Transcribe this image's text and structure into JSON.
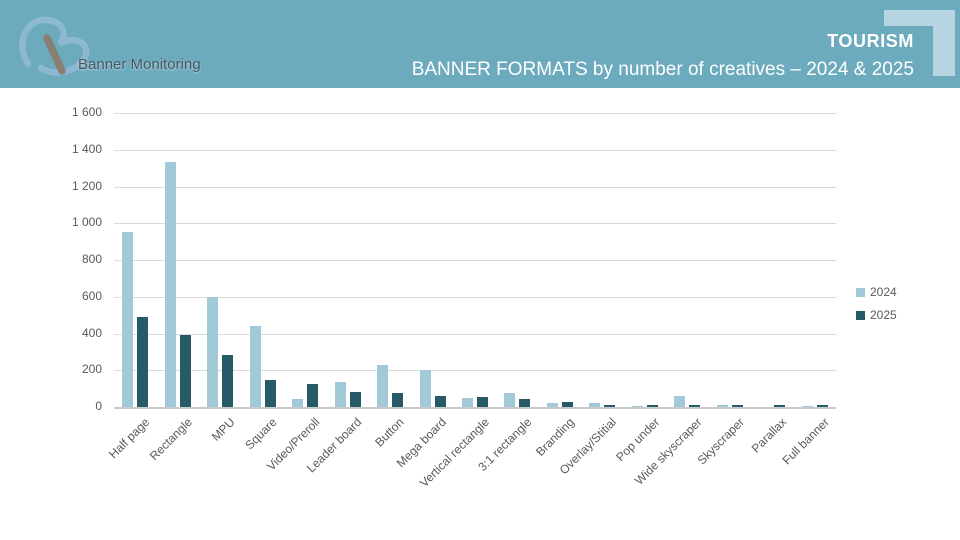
{
  "header": {
    "brand": "Banner Monitoring",
    "category": "TOURISM",
    "title": "BANNER FORMATS by number of creatives – 2024 & 2025"
  },
  "colors": {
    "header_bg": "#6caabe",
    "corner_decoration": "#b7d5e0",
    "series_2024": "#a2c9d8",
    "series_2025": "#265a67",
    "gridline": "#d9d9d9",
    "tick_text": "#595959"
  },
  "chart_data": {
    "type": "bar",
    "title": "BANNER FORMATS by number of creatives – 2024 & 2025",
    "xlabel": "",
    "ylabel": "",
    "ylim": [
      0,
      1600
    ],
    "ytick_labels": [
      "0",
      "200",
      "400",
      "600",
      "800",
      "1 000",
      "1 200",
      "1 400",
      "1 600"
    ],
    "grid": true,
    "legend_position": "right",
    "categories": [
      "Half page",
      "Rectangle",
      "MPU",
      "Square",
      "Video/Preroll",
      "Leader board",
      "Button",
      "Mega board",
      "Vertical rectangle",
      "3:1 rectangle",
      "Branding",
      "Overlay/Stitial",
      "Pop under",
      "Wide skyscraper",
      "Skyscraper",
      "Parallax",
      "Full banner"
    ],
    "series": [
      {
        "name": "2024",
        "color": "#a2c9d8",
        "values": [
          950,
          1335,
          600,
          440,
          45,
          135,
          230,
          200,
          48,
          78,
          22,
          20,
          5,
          60,
          9,
          0,
          8
        ]
      },
      {
        "name": "2025",
        "color": "#265a67",
        "values": [
          490,
          390,
          285,
          145,
          125,
          80,
          75,
          60,
          53,
          45,
          26,
          12,
          9,
          10,
          9,
          10,
          12
        ]
      }
    ]
  }
}
